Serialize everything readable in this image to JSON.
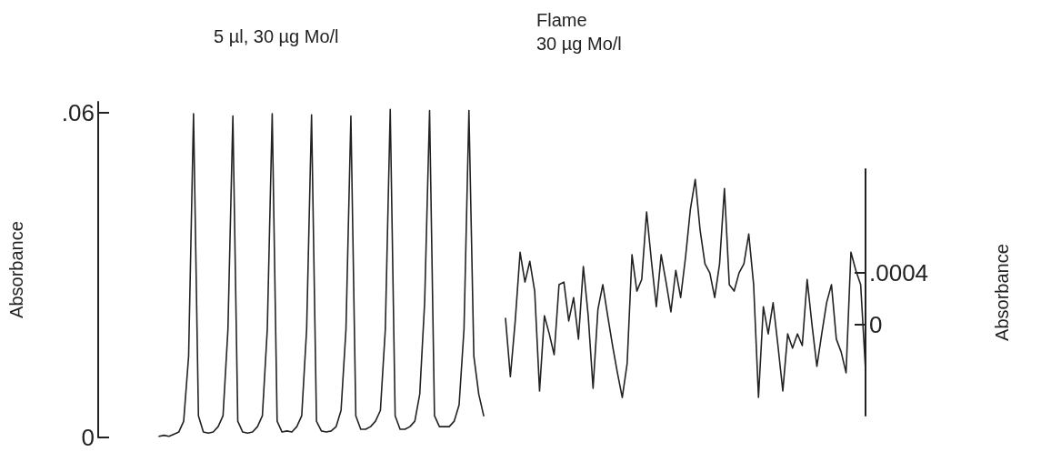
{
  "chart_data": [
    {
      "type": "line",
      "title": "5 µl, 30 µg Mo/l",
      "ylabel": "Absorbance",
      "categories": [
        null,
        null,
        null,
        null,
        null,
        null,
        null,
        null,
        null,
        null,
        null,
        null,
        null,
        null,
        null,
        null,
        null,
        null,
        null,
        null,
        null,
        null,
        null,
        null,
        null,
        null,
        null,
        null,
        null,
        null,
        null,
        null,
        null,
        null,
        null,
        null,
        null,
        null,
        null,
        null,
        null,
        null,
        null,
        null,
        null,
        null,
        null,
        null,
        null,
        null,
        null,
        null,
        null,
        null,
        null,
        null,
        null,
        null,
        null,
        null,
        null,
        null,
        null,
        null,
        null,
        null,
        null
      ],
      "series": [
        {
          "color": "#222222",
          "values": [
            0.0002,
            0.0004,
            0.0002,
            0.0006,
            0.001,
            0.003,
            0.015,
            0.0598,
            0.004,
            0.001,
            0.0008,
            0.001,
            0.002,
            0.004,
            0.02,
            0.0594,
            0.003,
            0.001,
            0.0008,
            0.001,
            0.002,
            0.004,
            0.02,
            0.0598,
            0.003,
            0.001,
            0.0012,
            0.001,
            0.002,
            0.004,
            0.02,
            0.0596,
            0.003,
            0.0012,
            0.001,
            0.0012,
            0.002,
            0.005,
            0.02,
            0.0594,
            0.004,
            0.0015,
            0.0015,
            0.002,
            0.003,
            0.005,
            0.02,
            0.0606,
            0.004,
            0.0015,
            0.0015,
            0.002,
            0.003,
            0.008,
            0.025,
            0.0604,
            0.004,
            0.002,
            0.002,
            0.002,
            0.003,
            0.006,
            0.02,
            0.0604,
            0.015,
            0.008,
            0.004
          ]
        }
      ],
      "ylim": [
        0,
        0.062
      ],
      "yticks": [
        0,
        {
          "value": 0.06,
          "label": ".06"
        }
      ],
      "tick_labels": "y",
      "grid": false,
      "line_style": "solid"
    },
    {
      "type": "line",
      "title": "Flame",
      "subtitle": "30 µg Mo/l",
      "ylabel": "Absorbance",
      "categories": [
        null,
        null,
        null,
        null,
        null,
        null,
        null,
        null,
        null,
        null,
        null,
        null,
        null,
        null,
        null,
        null,
        null,
        null,
        null,
        null,
        null,
        null,
        null,
        null,
        null,
        null,
        null,
        null,
        null,
        null,
        null,
        null,
        null,
        null,
        null,
        null,
        null,
        null,
        null,
        null,
        null,
        null,
        null,
        null,
        null,
        null,
        null,
        null,
        null,
        null,
        null,
        null,
        null,
        null,
        null,
        null,
        null,
        null,
        null,
        null,
        null,
        null,
        null,
        null,
        null,
        null,
        null,
        null,
        null,
        null,
        null,
        null,
        null,
        null,
        null
      ],
      "series": [
        {
          "color": "#222222",
          "values": [
            5e-05,
            -0.0004,
            3e-05,
            0.00056,
            0.00033,
            0.00049,
            0.00026,
            -0.00051,
            7e-05,
            -7e-05,
            -0.00023,
            0.00031,
            0.00033,
            3e-05,
            0.00021,
            -0.00011,
            0.00045,
            7e-05,
            -0.00049,
            0.00012,
            0.00031,
            7e-05,
            -0.00016,
            -0.00037,
            -0.00056,
            -0.0003,
            0.00054,
            0.00026,
            0.00035,
            0.00087,
            0.00049,
            0.00014,
            0.00054,
            0.00033,
            0.0001,
            0.00042,
            0.00021,
            0.00052,
            0.00089,
            0.00112,
            0.00073,
            0.00047,
            0.0004,
            0.00021,
            0.00047,
            0.00105,
            0.00031,
            0.00026,
            0.0004,
            0.00047,
            0.0007,
            0.00031,
            -0.00056,
            0.00014,
            -7e-05,
            0.00017,
            -0.00016,
            -0.00051,
            -7e-05,
            -0.00018,
            -7e-05,
            -0.00016,
            0.00035,
            0,
            -0.00032,
            -7e-05,
            0.00017,
            0.00031,
            -0.00011,
            -0.00021,
            -0.00037,
            0.00056,
            0.00042,
            0.00031,
            -0.00035
          ]
        }
      ],
      "ylim": [
        -0.0007,
        0.0012
      ],
      "yticks": [
        0,
        {
          "value": 0.0004,
          "label": ".0004"
        }
      ],
      "tick_labels": "y",
      "grid": false,
      "line_style": "solid"
    }
  ]
}
